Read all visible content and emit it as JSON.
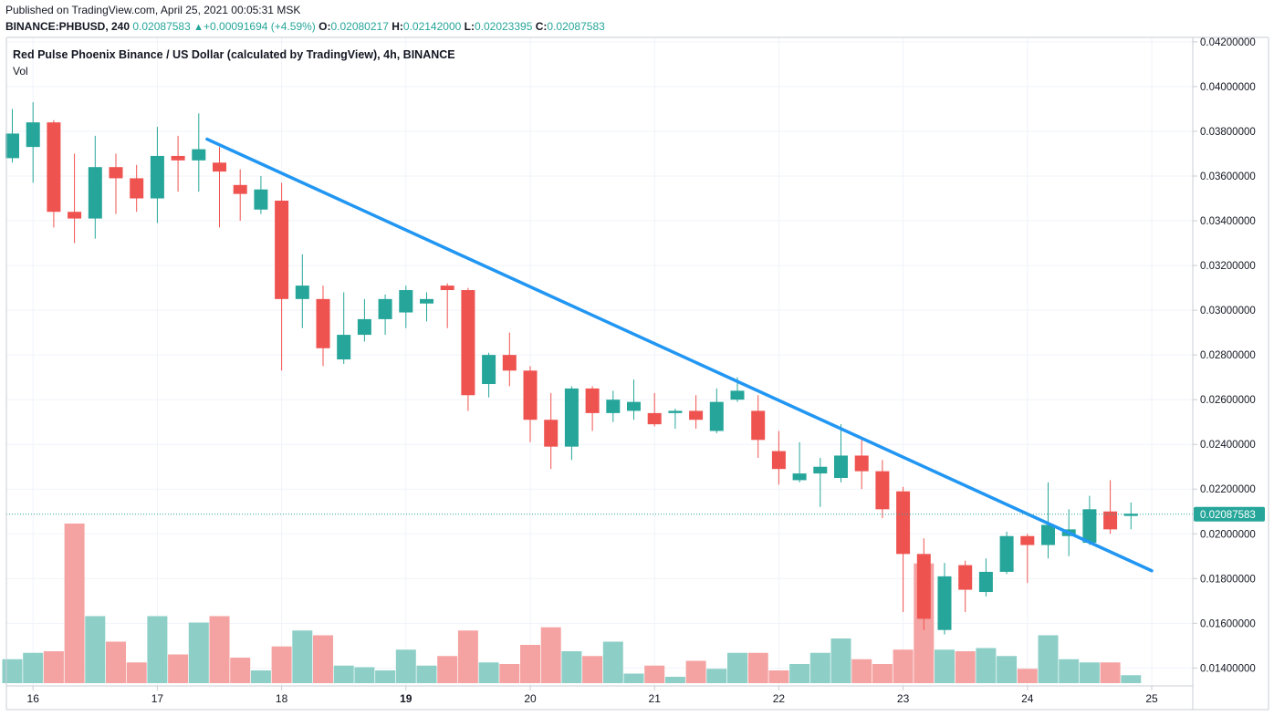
{
  "header": {
    "published": "Published on TradingView.com, April 25, 2021 00:05:31 MSK",
    "symbol": "BINANCE:PHBUSD, 240",
    "last": "0.02087583",
    "arrow": "▲",
    "change": "+0.00091694 (+4.59%)",
    "o_label": "O:",
    "o_value": "0.02080217",
    "h_label": "H:",
    "h_value": "0.02142000",
    "l_label": "L:",
    "l_value": "0.02023395",
    "c_label": "C:",
    "c_value": "0.02087583"
  },
  "chart_data": {
    "type": "candlestick",
    "title": "Red Pulse Phoenix Binance / US Dollar (calculated by TradingView), 4h, BINANCE",
    "volume_label": "Vol",
    "ylim": [
      0.0132,
      0.0422
    ],
    "y_ticks": [
      {
        "value": 0.042,
        "label": "0.04200000"
      },
      {
        "value": 0.04,
        "label": "0.04000000"
      },
      {
        "value": 0.038,
        "label": "0.03800000"
      },
      {
        "value": 0.036,
        "label": "0.03600000"
      },
      {
        "value": 0.034,
        "label": "0.03400000"
      },
      {
        "value": 0.032,
        "label": "0.03200000"
      },
      {
        "value": 0.03,
        "label": "0.03000000"
      },
      {
        "value": 0.028,
        "label": "0.02800000"
      },
      {
        "value": 0.026,
        "label": "0.02600000"
      },
      {
        "value": 0.024,
        "label": "0.02400000"
      },
      {
        "value": 0.022,
        "label": "0.02200000"
      },
      {
        "value": 0.02,
        "label": "0.02000000"
      },
      {
        "value": 0.018,
        "label": "0.01800000"
      },
      {
        "value": 0.016,
        "label": "0.01600000"
      },
      {
        "value": 0.014,
        "label": "0.01400000"
      }
    ],
    "x_ticks": [
      {
        "label": "16",
        "bar": 1,
        "bold": false
      },
      {
        "label": "17",
        "bar": 7,
        "bold": false
      },
      {
        "label": "18",
        "bar": 13,
        "bold": false
      },
      {
        "label": "19",
        "bar": 19,
        "bold": true
      },
      {
        "label": "20",
        "bar": 25,
        "bold": false
      },
      {
        "label": "21",
        "bar": 31,
        "bold": false
      },
      {
        "label": "22",
        "bar": 37,
        "bold": false
      },
      {
        "label": "23",
        "bar": 43,
        "bold": false
      },
      {
        "label": "24",
        "bar": 49,
        "bold": false
      },
      {
        "label": "25",
        "bar": 55,
        "bold": false
      }
    ],
    "last_price": 0.02087583,
    "last_price_label": "0.02087583",
    "trendline": {
      "from_bar": 9.4,
      "from_price": 0.03765,
      "to_bar": 55,
      "to_price": 0.01835
    },
    "candles": [
      {
        "o": 0.0368,
        "h": 0.039,
        "l": 0.0366,
        "c": 0.0379,
        "v": 0.15
      },
      {
        "o": 0.0373,
        "h": 0.0393,
        "l": 0.0357,
        "c": 0.0384,
        "v": 0.19
      },
      {
        "o": 0.0384,
        "h": 0.0385,
        "l": 0.0337,
        "c": 0.0344,
        "v": 0.2
      },
      {
        "o": 0.0344,
        "h": 0.037,
        "l": 0.033,
        "c": 0.0341,
        "v": 1.0
      },
      {
        "o": 0.0341,
        "h": 0.0378,
        "l": 0.0332,
        "c": 0.0364,
        "v": 0.42
      },
      {
        "o": 0.0364,
        "h": 0.037,
        "l": 0.0343,
        "c": 0.0359,
        "v": 0.26
      },
      {
        "o": 0.0359,
        "h": 0.0365,
        "l": 0.0344,
        "c": 0.035,
        "v": 0.13
      },
      {
        "o": 0.035,
        "h": 0.0382,
        "l": 0.0339,
        "c": 0.0369,
        "v": 0.42
      },
      {
        "o": 0.0369,
        "h": 0.0378,
        "l": 0.0353,
        "c": 0.0367,
        "v": 0.18
      },
      {
        "o": 0.0367,
        "h": 0.0388,
        "l": 0.0353,
        "c": 0.0372,
        "v": 0.38
      },
      {
        "o": 0.0366,
        "h": 0.0373,
        "l": 0.0337,
        "c": 0.0362,
        "v": 0.42
      },
      {
        "o": 0.0356,
        "h": 0.0363,
        "l": 0.034,
        "c": 0.0352,
        "v": 0.16
      },
      {
        "o": 0.0345,
        "h": 0.036,
        "l": 0.0343,
        "c": 0.0354,
        "v": 0.08
      },
      {
        "o": 0.0349,
        "h": 0.0357,
        "l": 0.0273,
        "c": 0.0305,
        "v": 0.23
      },
      {
        "o": 0.0305,
        "h": 0.0325,
        "l": 0.0292,
        "c": 0.0311,
        "v": 0.33
      },
      {
        "o": 0.0305,
        "h": 0.0311,
        "l": 0.0275,
        "c": 0.0283,
        "v": 0.3
      },
      {
        "o": 0.0278,
        "h": 0.0308,
        "l": 0.0276,
        "c": 0.0289,
        "v": 0.11
      },
      {
        "o": 0.0289,
        "h": 0.0305,
        "l": 0.0286,
        "c": 0.0296,
        "v": 0.1
      },
      {
        "o": 0.0296,
        "h": 0.0307,
        "l": 0.0289,
        "c": 0.0305,
        "v": 0.08
      },
      {
        "o": 0.0299,
        "h": 0.0311,
        "l": 0.0292,
        "c": 0.0309,
        "v": 0.21
      },
      {
        "o": 0.0303,
        "h": 0.0308,
        "l": 0.0295,
        "c": 0.0305,
        "v": 0.11
      },
      {
        "o": 0.0311,
        "h": 0.0312,
        "l": 0.0292,
        "c": 0.0309,
        "v": 0.17
      },
      {
        "o": 0.0309,
        "h": 0.031,
        "l": 0.0255,
        "c": 0.0262,
        "v": 0.33
      },
      {
        "o": 0.0267,
        "h": 0.0281,
        "l": 0.0261,
        "c": 0.028,
        "v": 0.13
      },
      {
        "o": 0.028,
        "h": 0.029,
        "l": 0.0266,
        "c": 0.0273,
        "v": 0.12
      },
      {
        "o": 0.0273,
        "h": 0.0275,
        "l": 0.0241,
        "c": 0.0251,
        "v": 0.24
      },
      {
        "o": 0.0251,
        "h": 0.0263,
        "l": 0.0229,
        "c": 0.0239,
        "v": 0.35
      },
      {
        "o": 0.0239,
        "h": 0.0266,
        "l": 0.0233,
        "c": 0.0265,
        "v": 0.2
      },
      {
        "o": 0.0265,
        "h": 0.0266,
        "l": 0.0246,
        "c": 0.0254,
        "v": 0.17
      },
      {
        "o": 0.0254,
        "h": 0.0264,
        "l": 0.025,
        "c": 0.026,
        "v": 0.26
      },
      {
        "o": 0.0255,
        "h": 0.0269,
        "l": 0.0251,
        "c": 0.0259,
        "v": 0.06
      },
      {
        "o": 0.0254,
        "h": 0.0263,
        "l": 0.0248,
        "c": 0.0249,
        "v": 0.11
      },
      {
        "o": 0.0254,
        "h": 0.0256,
        "l": 0.0247,
        "c": 0.0255,
        "v": 0.04
      },
      {
        "o": 0.0255,
        "h": 0.0262,
        "l": 0.0247,
        "c": 0.0251,
        "v": 0.14
      },
      {
        "o": 0.0246,
        "h": 0.0265,
        "l": 0.0245,
        "c": 0.0259,
        "v": 0.09
      },
      {
        "o": 0.026,
        "h": 0.027,
        "l": 0.0259,
        "c": 0.0264,
        "v": 0.19
      },
      {
        "o": 0.0255,
        "h": 0.0262,
        "l": 0.0234,
        "c": 0.0242,
        "v": 0.19
      },
      {
        "o": 0.0237,
        "h": 0.0246,
        "l": 0.0222,
        "c": 0.0229,
        "v": 0.08
      },
      {
        "o": 0.0224,
        "h": 0.0241,
        "l": 0.0223,
        "c": 0.0227,
        "v": 0.12
      },
      {
        "o": 0.0227,
        "h": 0.0234,
        "l": 0.0212,
        "c": 0.023,
        "v": 0.19
      },
      {
        "o": 0.0225,
        "h": 0.0249,
        "l": 0.0223,
        "c": 0.0235,
        "v": 0.28
      },
      {
        "o": 0.0235,
        "h": 0.0242,
        "l": 0.022,
        "c": 0.0228,
        "v": 0.15
      },
      {
        "o": 0.0228,
        "h": 0.0233,
        "l": 0.0207,
        "c": 0.0211,
        "v": 0.12
      },
      {
        "o": 0.0219,
        "h": 0.0221,
        "l": 0.0165,
        "c": 0.0191,
        "v": 0.21
      },
      {
        "o": 0.0191,
        "h": 0.0198,
        "l": 0.0157,
        "c": 0.0162,
        "v": 0.75
      },
      {
        "o": 0.0157,
        "h": 0.0187,
        "l": 0.0155,
        "c": 0.0181,
        "v": 0.21
      },
      {
        "o": 0.0186,
        "h": 0.0188,
        "l": 0.0165,
        "c": 0.0175,
        "v": 0.2
      },
      {
        "o": 0.0174,
        "h": 0.0189,
        "l": 0.0172,
        "c": 0.0183,
        "v": 0.22
      },
      {
        "o": 0.0183,
        "h": 0.0201,
        "l": 0.0182,
        "c": 0.0199,
        "v": 0.17
      },
      {
        "o": 0.0199,
        "h": 0.02,
        "l": 0.0178,
        "c": 0.0195,
        "v": 0.09
      },
      {
        "o": 0.0195,
        "h": 0.0223,
        "l": 0.0189,
        "c": 0.0204,
        "v": 0.3
      },
      {
        "o": 0.0199,
        "h": 0.0211,
        "l": 0.019,
        "c": 0.0202,
        "v": 0.15
      },
      {
        "o": 0.0196,
        "h": 0.0217,
        "l": 0.0195,
        "c": 0.0211,
        "v": 0.13
      },
      {
        "o": 0.021,
        "h": 0.0224,
        "l": 0.02,
        "c": 0.0202,
        "v": 0.13
      },
      {
        "o": 0.0208,
        "h": 0.0214,
        "l": 0.0202,
        "c": 0.0209,
        "v": 0.05
      }
    ]
  },
  "colors": {
    "up": "#26a69a",
    "down": "#ef5350",
    "vol_up": "#8dcfc7",
    "vol_down": "#f5a3a2",
    "trendline": "#2196f3",
    "grid": "#f0f3fa",
    "axis": "#c9ccd4"
  }
}
